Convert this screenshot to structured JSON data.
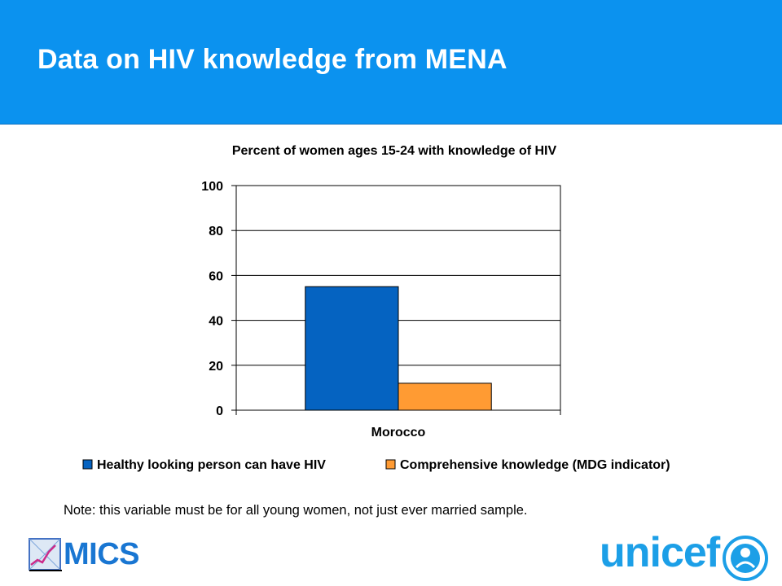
{
  "header": {
    "title": "Data on HIV knowledge from MENA"
  },
  "note": "Note: this variable must be for all young women, not just ever married sample.",
  "logos": {
    "left": "MICS",
    "right": "unicef"
  },
  "colors": {
    "header_bg": "#0b92ef",
    "series1": "#0563c1",
    "series2": "#ff9b33"
  },
  "chart_data": {
    "type": "bar",
    "title": "Percent of women ages 15-24 with knowledge of HIV",
    "categories": [
      "Morocco"
    ],
    "series": [
      {
        "name": "Healthy looking person can have HIV",
        "values": [
          55
        ],
        "color": "#0563c1"
      },
      {
        "name": "Comprehensive knowledge (MDG indicator)",
        "values": [
          12
        ],
        "color": "#ff9b33"
      }
    ],
    "ylim": [
      0,
      100
    ],
    "yticks": [
      0,
      20,
      40,
      60,
      80,
      100
    ],
    "grid": true,
    "legend": "bottom"
  }
}
